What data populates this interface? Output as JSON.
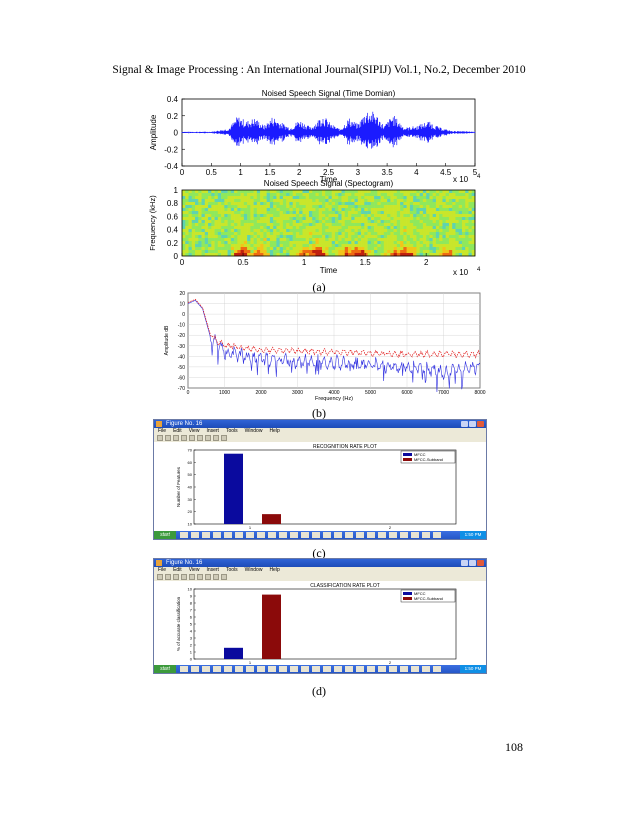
{
  "header": "Signal & Image Processing : An International Journal(SIPIJ) Vol.1, No.2, December 2010",
  "page_number": "108",
  "captions": {
    "a": "(a)",
    "b": "(b)",
    "c": "(c)",
    "d": "(d)"
  },
  "colors": {
    "signal_blue": "#1b1bff",
    "bar_blue": "#0a0a9e",
    "bar_red": "#8b0a0a",
    "envelope_red": "#e01010"
  },
  "chart_data": [
    {
      "type": "line",
      "title": "Noised Speech Signal (Time Domian)",
      "xlabel": "Time",
      "ylabel": "Amplitude",
      "x_ticks": [
        "0",
        "0.5",
        "1",
        "1.5",
        "2",
        "2.5",
        "3",
        "3.5",
        "4",
        "4.5",
        "5"
      ],
      "y_ticks": [
        "0.4",
        "0.2",
        "0",
        "-0.2",
        "-0.4"
      ],
      "x_multiplier": "x 10",
      "x_multiplier_exp": "4",
      "xlim": [
        0,
        50000
      ],
      "ylim": [
        -0.4,
        0.4
      ],
      "series": [
        {
          "x": [
            0,
            5000,
            8000,
            9500,
            11000,
            12500,
            14000,
            15500,
            17000,
            18500,
            20000,
            22000,
            24000,
            25500,
            27000,
            28500,
            30000,
            31500,
            33000,
            34500,
            36000,
            38000,
            40000,
            42000,
            44000,
            46000,
            50000
          ],
          "envelope": [
            0.01,
            0.01,
            0.05,
            0.2,
            0.14,
            0.18,
            0.08,
            0.2,
            0.12,
            0.06,
            0.16,
            0.06,
            0.22,
            0.1,
            0.04,
            0.18,
            0.1,
            0.28,
            0.24,
            0.08,
            0.22,
            0.06,
            0.08,
            0.14,
            0.06,
            0.02,
            0.01
          ]
        }
      ]
    },
    {
      "type": "heatmap",
      "title": "Noised Speech Signal (Spectogram)",
      "xlabel": "Time",
      "ylabel": "Frequency (kHz)",
      "x_ticks": [
        "0",
        "0.5",
        "1",
        "1.5",
        "2"
      ],
      "y_ticks": [
        "1",
        "0.8",
        "0.6",
        "0.4",
        "0.2",
        "0"
      ],
      "x_multiplier": "x 10",
      "x_multiplier_exp": "4",
      "xlim": [
        0,
        24000
      ],
      "ylim": [
        0,
        1
      ]
    },
    {
      "type": "line",
      "xlabel": "Frequency (Hz)",
      "ylabel": "Amplitude dB",
      "x_ticks": [
        "0",
        "1000",
        "2000",
        "3000",
        "4000",
        "5000",
        "6000",
        "7000",
        "8000"
      ],
      "y_ticks": [
        "20",
        "10",
        "0",
        "-10",
        "-20",
        "-30",
        "-40",
        "-50",
        "-60",
        "-70"
      ],
      "xlim": [
        0,
        8000
      ],
      "ylim": [
        -70,
        20
      ],
      "series": [
        {
          "name": "",
          "color": "#3030e0",
          "x": [
            0,
            200,
            400,
            600,
            800,
            1000,
            1500,
            2000,
            3000,
            4000,
            5000,
            6000,
            7000,
            8000
          ],
          "y": [
            10,
            13,
            5,
            -20,
            -30,
            -35,
            -40,
            -43,
            -45,
            -46,
            -48,
            -50,
            -55,
            -50
          ]
        },
        {
          "name": "",
          "color": "#e01010",
          "x": [
            0,
            200,
            400,
            600,
            800,
            1000,
            1500,
            2000,
            3000,
            4000,
            5000,
            6000,
            7000,
            8000
          ],
          "y": [
            11,
            14,
            6,
            -18,
            -26,
            -29,
            -32,
            -34,
            -35,
            -36,
            -37,
            -38,
            -38,
            -38
          ]
        }
      ]
    },
    {
      "type": "bar",
      "window_title": "Figure No. 16",
      "menu": [
        "File",
        "Edit",
        "View",
        "Insert",
        "Tools",
        "Window",
        "Help"
      ],
      "title": "RECOGNITION RATE PLOT",
      "xlabel": "observation",
      "ylabel": "Number of Features",
      "y_ticks": [
        "70",
        "60",
        "50",
        "40",
        "30",
        "20",
        "10"
      ],
      "x_ticks": [
        "1",
        "2"
      ],
      "ylim": [
        10,
        70
      ],
      "legend": [
        "MFCC",
        "MFCC-Subband"
      ],
      "legend_position": "top-right",
      "categories": [
        "1"
      ],
      "series": [
        {
          "name": "MFCC",
          "values": [
            67
          ]
        },
        {
          "name": "MFCC-Subband",
          "values": [
            18
          ]
        }
      ],
      "start_label": "start",
      "clock": "1:50 PM"
    },
    {
      "type": "bar",
      "window_title": "Figure No. 16",
      "menu": [
        "File",
        "Edit",
        "View",
        "Insert",
        "Tools",
        "Window",
        "Help"
      ],
      "title": "CLASSIFICATION RATE PLOT",
      "xlabel": "observation",
      "ylabel": "% of accurate classification",
      "y_ticks": [
        "10",
        "9",
        "8",
        "7",
        "6",
        "5",
        "4",
        "3",
        "2",
        "1",
        "0"
      ],
      "x_ticks": [
        "1",
        "2"
      ],
      "ylim": [
        0,
        10
      ],
      "legend": [
        "MFCC",
        "MFCC-Subband"
      ],
      "legend_position": "top-right",
      "categories": [
        "1"
      ],
      "series": [
        {
          "name": "MFCC",
          "values": [
            1.6
          ]
        },
        {
          "name": "MFCC-Subband",
          "values": [
            9.2
          ]
        }
      ],
      "start_label": "start",
      "clock": "1:50 PM"
    }
  ]
}
